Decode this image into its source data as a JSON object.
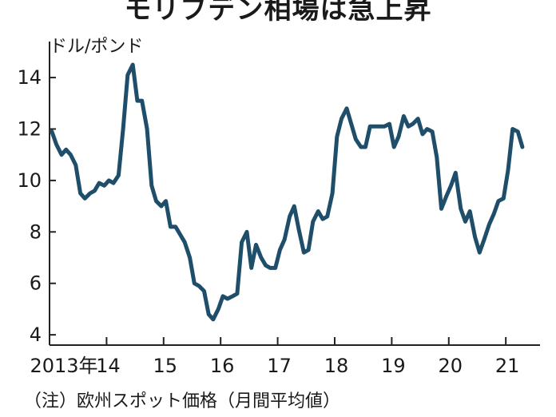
{
  "title": "モリブデン相場は急上昇",
  "unit": "ドル/ポンド",
  "note": "（注）欧州スポット価格（月間平均値）",
  "colors": {
    "line": "#1f4e6b",
    "axis": "#222222"
  },
  "chart_data": {
    "type": "line",
    "title": "モリブデン相場は急上昇",
    "ylabel": "ドル/ポンド",
    "x_tick_labels": [
      "2013年",
      "14",
      "15",
      "16",
      "17",
      "18",
      "19",
      "20",
      "21"
    ],
    "y_ticks": [
      4,
      6,
      8,
      10,
      12,
      14
    ],
    "xlim": [
      2013.0,
      2021.6
    ],
    "ylim": [
      3.6,
      15.4
    ],
    "grid": false,
    "series": [
      {
        "x": [
          2013.04,
          2013.12,
          2013.21,
          2013.29,
          2013.37,
          2013.46,
          2013.54,
          2013.62,
          2013.71,
          2013.79,
          2013.87,
          2013.96,
          2014.04,
          2014.12,
          2014.21,
          2014.29,
          2014.37,
          2014.46,
          2014.54,
          2014.62,
          2014.71,
          2014.79,
          2014.87,
          2014.96,
          2015.04,
          2015.12,
          2015.21,
          2015.29,
          2015.37,
          2015.46,
          2015.54,
          2015.62,
          2015.71,
          2015.79,
          2015.87,
          2015.96,
          2016.04,
          2016.12,
          2016.21,
          2016.29,
          2016.37,
          2016.46,
          2016.54,
          2016.62,
          2016.71,
          2016.79,
          2016.87,
          2016.96,
          2017.04,
          2017.12,
          2017.21,
          2017.29,
          2017.37,
          2017.46,
          2017.54,
          2017.62,
          2017.71,
          2017.79,
          2017.87,
          2017.96,
          2018.04,
          2018.12,
          2018.21,
          2018.29,
          2018.37,
          2018.46,
          2018.54,
          2018.62,
          2018.71,
          2018.79,
          2018.87,
          2018.96,
          2019.04,
          2019.12,
          2019.21,
          2019.29,
          2019.37,
          2019.46,
          2019.54,
          2019.62,
          2019.71,
          2019.79,
          2019.87,
          2019.96,
          2020.04,
          2020.12,
          2020.21,
          2020.29,
          2020.37,
          2020.46,
          2020.54,
          2020.62,
          2020.71,
          2020.79,
          2020.87,
          2020.96,
          2021.04,
          2021.12,
          2021.21,
          2021.29
        ],
        "y": [
          11.9,
          11.4,
          11.0,
          11.2,
          11.0,
          10.6,
          9.5,
          9.3,
          9.5,
          9.6,
          9.9,
          9.8,
          10.0,
          9.9,
          10.2,
          12.0,
          14.1,
          14.5,
          13.1,
          13.1,
          12.0,
          9.8,
          9.2,
          9.0,
          9.2,
          8.2,
          8.2,
          7.9,
          7.6,
          7.0,
          6.0,
          5.9,
          5.7,
          4.8,
          4.6,
          5.0,
          5.5,
          5.4,
          5.5,
          5.6,
          7.6,
          8.0,
          6.6,
          7.5,
          7.0,
          6.7,
          6.6,
          6.6,
          7.3,
          7.7,
          8.6,
          9.0,
          8.1,
          7.2,
          7.3,
          8.4,
          8.8,
          8.5,
          8.6,
          9.5,
          11.7,
          12.4,
          12.8,
          12.2,
          11.6,
          11.3,
          11.3,
          12.1,
          12.1,
          12.1,
          12.1,
          12.2,
          11.3,
          11.7,
          12.5,
          12.1,
          12.2,
          12.4,
          11.8,
          12.0,
          11.9,
          10.9,
          8.9,
          9.4,
          9.8,
          10.3,
          8.9,
          8.4,
          8.8,
          7.8,
          7.2,
          7.7,
          8.3,
          8.7,
          9.2,
          9.3,
          10.4,
          12.0,
          11.9,
          11.3
        ]
      }
    ]
  }
}
